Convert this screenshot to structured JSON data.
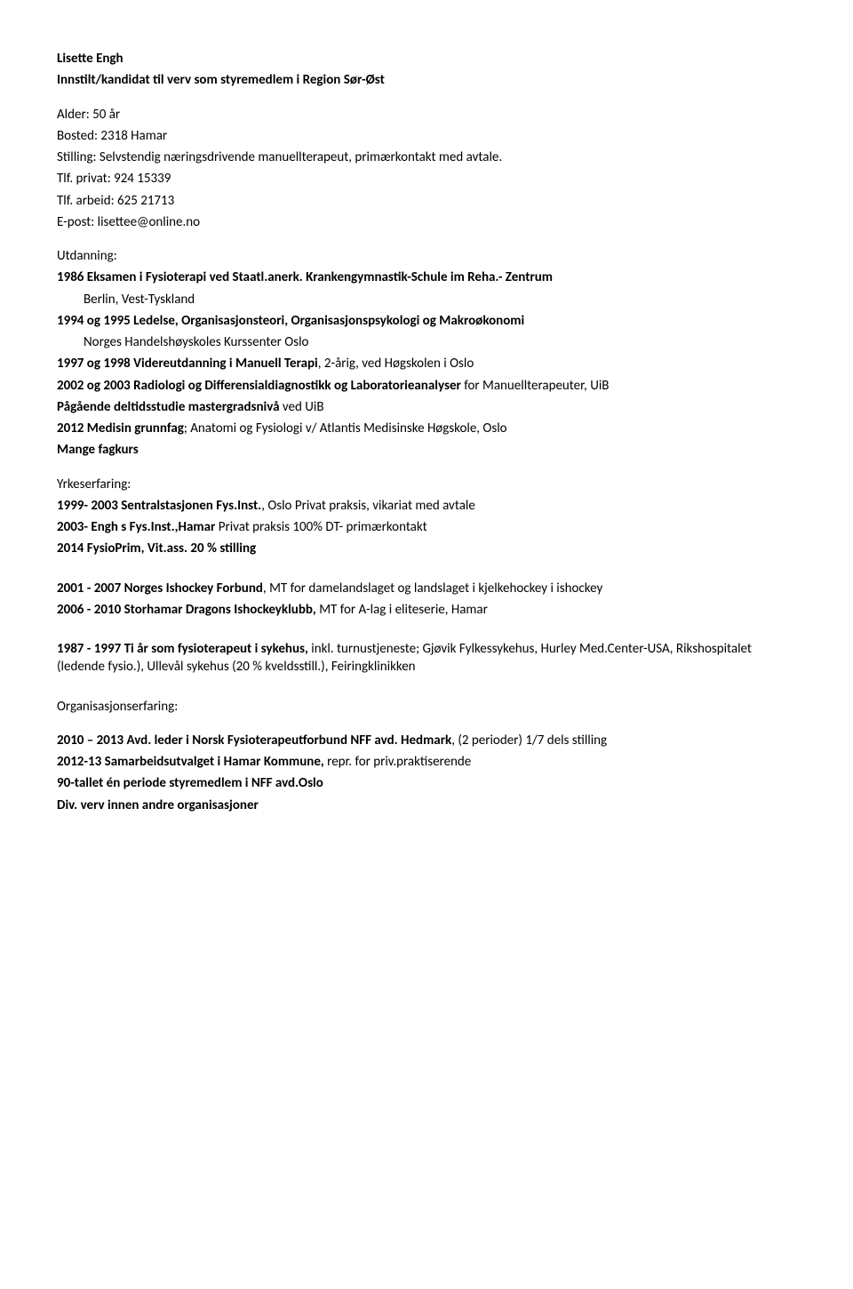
{
  "header": {
    "name": "Lisette Engh",
    "candidacy": "Innstilt/kandidat til verv som styremedlem i Region Sør-Øst"
  },
  "personal": {
    "age": "Alder: 50 år",
    "residence": "Bosted: 2318 Hamar",
    "position": "Stilling: Selvstendig næringsdrivende manuellterapeut, primærkontakt med avtale.",
    "phone_private": "Tlf. privat: 924 15339",
    "phone_work": "Tlf. arbeid: 625 21713",
    "email": "E-post: lisettee@online.no"
  },
  "education": {
    "heading": "Utdanning:",
    "items": [
      {
        "line1_b": "1986 Eksamen i Fysioterapi ved Staatl.anerk. Krankengymnastik-Schule im Reha.- Zentrum",
        "line2": "Berlin, Vest-Tyskland"
      },
      {
        "line1_b": "1994 og 1995 Ledelse, Organisasjonsteori, Organisasjonspsykologi og Makroøkonomi",
        "line2": "Norges Handelshøyskoles Kurssenter Oslo"
      },
      {
        "line1_b": "1997 og 1998 Videreutdanning i Manuell Terapi",
        "line1": ", 2-årig, ved Høgskolen i Oslo"
      },
      {
        "line1_b": "2002 og 2003 Radiologi og Differensialdiagnostikk og Laboratorieanalyser",
        "line1": " for Manuellterapeuter, UiB"
      },
      {
        "line1_b": "Pågående deltidsstudie mastergradsnivå",
        "line1": " ved UiB"
      },
      {
        "line1_b": "2012 Medisin grunnfag",
        "line1": "; Anatomi og Fysiologi v/ Atlantis Medisinske Høgskole, Oslo"
      },
      {
        "line1_b": "Mange fagkurs"
      }
    ]
  },
  "work": {
    "heading": "Yrkeserfaring:",
    "items1": [
      {
        "b": "1999- 2003 Sentralstasjonen Fys.Inst.",
        "r": ", Oslo Privat praksis, vikariat med avtale"
      },
      {
        "b": "2003- Engh s Fys.Inst.,Hamar",
        "r": " Privat praksis 100% DT- primærkontakt"
      },
      {
        "b": "2014  FysioPrim, Vit.ass. 20 % stilling"
      }
    ],
    "items2": [
      {
        "b": "2001 - 2007 Norges Ishockey Forbund",
        "r": ", MT for damelandslaget og landslaget i kjelkehockey i ishockey"
      },
      {
        "b": "2006 - 2010 Storhamar Dragons Ishockeyklubb,",
        "r": " MT for A-lag i eliteserie, Hamar"
      }
    ],
    "items3": [
      {
        "b": "1987 - 1997 Ti år som fysioterapeut i sykehus,",
        "r": " inkl. turnustjeneste; Gjøvik Fylkessykehus, Hurley Med.Center-USA, Rikshospitalet (ledende fysio.), Ullevål sykehus (20 % kveldsstill.), Feiringklinikken"
      }
    ]
  },
  "org": {
    "heading": "Organisasjonserfaring:",
    "items": [
      {
        "b": "2010 – 2013 Avd. leder i Norsk Fysioterapeutforbund NFF avd. Hedmark",
        "r": ", (2 perioder) 1/7 dels stilling"
      },
      {
        "b": "2012-13 Samarbeidsutvalget i Hamar Kommune,",
        "r": " repr. for priv.praktiserende"
      },
      {
        "b": "90-tallet én periode styremedlem i NFF avd.Oslo"
      },
      {
        "b": "Div. verv innen andre organisasjoner"
      }
    ]
  }
}
